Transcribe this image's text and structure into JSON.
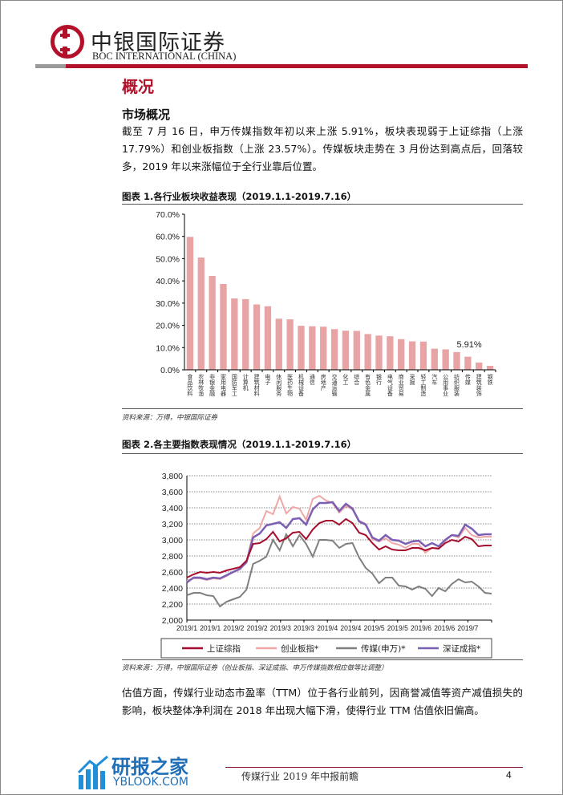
{
  "header": {
    "logo_cn": "中银国际证券",
    "logo_en": "BOC INTERNATIONAL (CHINA)"
  },
  "section_title": "概况",
  "subsection_title": "市场概况",
  "paragraph1": "截至 7 月 16 日，申万传媒指数年初以来上涨 5.91%，板块表现弱于上证综指（上涨 17.79%）和创业板指数（上涨 23.57%）。传媒板块走势在 3 月份达到高点后，回落较多，2019 年以来涨幅位于全行业靠后位置。",
  "figure1": {
    "title": "图表 1.各行业板块收益表现（2019.1.1-2019.7.16）",
    "source": "资料来源：万得，中银国际证券"
  },
  "figure2": {
    "title": "图表 2.各主要指数表现情况（2019.1.1-2019.7.16）",
    "source": "资料来源：万得，中银国际证券（创业板指、深证成指、申万传媒指数相应做等比调整）"
  },
  "paragraph2": "估值方面，传媒行业动态市盈率（TTM）位于各行业前列，因商誉减值等资产减值损失的影响，板块整体净利润在 2018 年出现大幅下滑，使得行业 TTM 估值依旧偏高。",
  "footer": {
    "text": "传媒行业 2019 年中报前瞻",
    "page": "4",
    "watermark_cn": "研报之家",
    "watermark_en": "YBLOOK.COM"
  },
  "colors": {
    "brand": "#b3102a",
    "bar": "#e8a3a5",
    "shanghai": "#a50f2d",
    "chinext": "#f0a7a7",
    "media": "#7f7f7f",
    "shenzhen": "#7b5fb3"
  },
  "chart_data": [
    {
      "type": "bar",
      "title": "图表 1.各行业板块收益表现（2019.1.1-2019.7.16）",
      "categories": [
        "食品饮料",
        "农林牧渔",
        "非银金融",
        "家用电器",
        "国防军工",
        "计算机",
        "建筑材料",
        "电子",
        "休闲服务",
        "医药生物",
        "机械设备",
        "通信",
        "房地产",
        "交通运输",
        "化工",
        "综合",
        "有色金属",
        "银行",
        "电气设备",
        "商业贸易",
        "采掘",
        "轻工制造",
        "汽车",
        "公用事业",
        "纺织服装",
        "传媒",
        "建筑装饰",
        "钢铁"
      ],
      "values": [
        59.8,
        50.5,
        42.2,
        38.6,
        32.1,
        31.8,
        29.4,
        28.6,
        23.0,
        22.7,
        19.8,
        19.6,
        19.4,
        18.3,
        17.6,
        17.5,
        16.1,
        15.4,
        15.1,
        13.8,
        12.8,
        12.7,
        9.5,
        9.2,
        8.0,
        5.91,
        3.3,
        1.8
      ],
      "yticks": [
        "0.0%",
        "10.0%",
        "20.0%",
        "30.0%",
        "40.0%",
        "50.0%",
        "60.0%",
        "70.0%"
      ],
      "ylim": [
        0,
        70
      ],
      "annotation": "5.91%",
      "xlabel": "",
      "ylabel": ""
    },
    {
      "type": "line",
      "title": "图表 2.各主要指数表现情况（2019.1.1-2019.7.16）",
      "ylim": [
        2000,
        3800
      ],
      "yticks": [
        "2,000",
        "2,200",
        "2,400",
        "2,600",
        "2,800",
        "3,000",
        "3,200",
        "3,400",
        "3,600",
        "3,800"
      ],
      "xticks": [
        "2019/1",
        "2019/1",
        "2019/2",
        "2019/2",
        "2019/3",
        "2019/3",
        "2019/4",
        "2019/4",
        "2019/5",
        "2019/5",
        "2019/6",
        "2019/6",
        "2019/7"
      ],
      "legend_position": "bottom",
      "grid": true,
      "series": [
        {
          "name": "上证综指",
          "color": "#a50f2d",
          "values": [
            2530,
            2570,
            2600,
            2590,
            2600,
            2590,
            2620,
            2640,
            2660,
            2740,
            2950,
            2960,
            3010,
            3100,
            2980,
            3020,
            3090,
            3100,
            3010,
            3130,
            3210,
            3240,
            3240,
            3190,
            3260,
            3210,
            3090,
            3060,
            2960,
            2880,
            2920,
            2880,
            2870,
            2870,
            2900,
            2900,
            2870,
            2900,
            2890,
            2960,
            3000,
            2980,
            3040,
            3010,
            2920,
            2930,
            2930
          ]
        },
        {
          "name": "创业板指*",
          "color": "#f0a7a7",
          "values": [
            2490,
            2520,
            2520,
            2500,
            2520,
            2510,
            2550,
            2600,
            2630,
            2730,
            3080,
            3150,
            3360,
            3320,
            3540,
            3330,
            3410,
            3390,
            3250,
            3510,
            3550,
            3490,
            3460,
            3340,
            3420,
            3380,
            3240,
            3200,
            3010,
            2980,
            3020,
            2960,
            2940,
            2900,
            2950,
            2950,
            2840,
            2900,
            2900,
            2990,
            3060,
            3030,
            3150,
            3060,
            3030,
            3040,
            3040
          ]
        },
        {
          "name": "传媒(申万)*",
          "color": "#7f7f7f",
          "values": [
            2310,
            2340,
            2340,
            2310,
            2300,
            2170,
            2230,
            2260,
            2290,
            2380,
            2700,
            2740,
            2790,
            3000,
            2870,
            3070,
            2920,
            3060,
            2950,
            2790,
            3000,
            3000,
            2990,
            2900,
            2950,
            2960,
            2780,
            2650,
            2580,
            2460,
            2530,
            2530,
            2430,
            2420,
            2380,
            2420,
            2390,
            2300,
            2400,
            2360,
            2450,
            2510,
            2470,
            2480,
            2420,
            2340,
            2330
          ]
        },
        {
          "name": "深证成指*",
          "color": "#7b5fb3",
          "values": [
            2470,
            2530,
            2530,
            2510,
            2530,
            2520,
            2560,
            2600,
            2640,
            2720,
            3030,
            3080,
            3180,
            3200,
            3220,
            3150,
            3260,
            3270,
            3190,
            3380,
            3460,
            3460,
            3470,
            3360,
            3450,
            3390,
            3230,
            3190,
            3030,
            2990,
            3060,
            3000,
            2990,
            2950,
            2980,
            2990,
            2920,
            2960,
            2920,
            3000,
            3060,
            3050,
            3190,
            3140,
            3060,
            3070,
            3070
          ]
        }
      ]
    }
  ]
}
